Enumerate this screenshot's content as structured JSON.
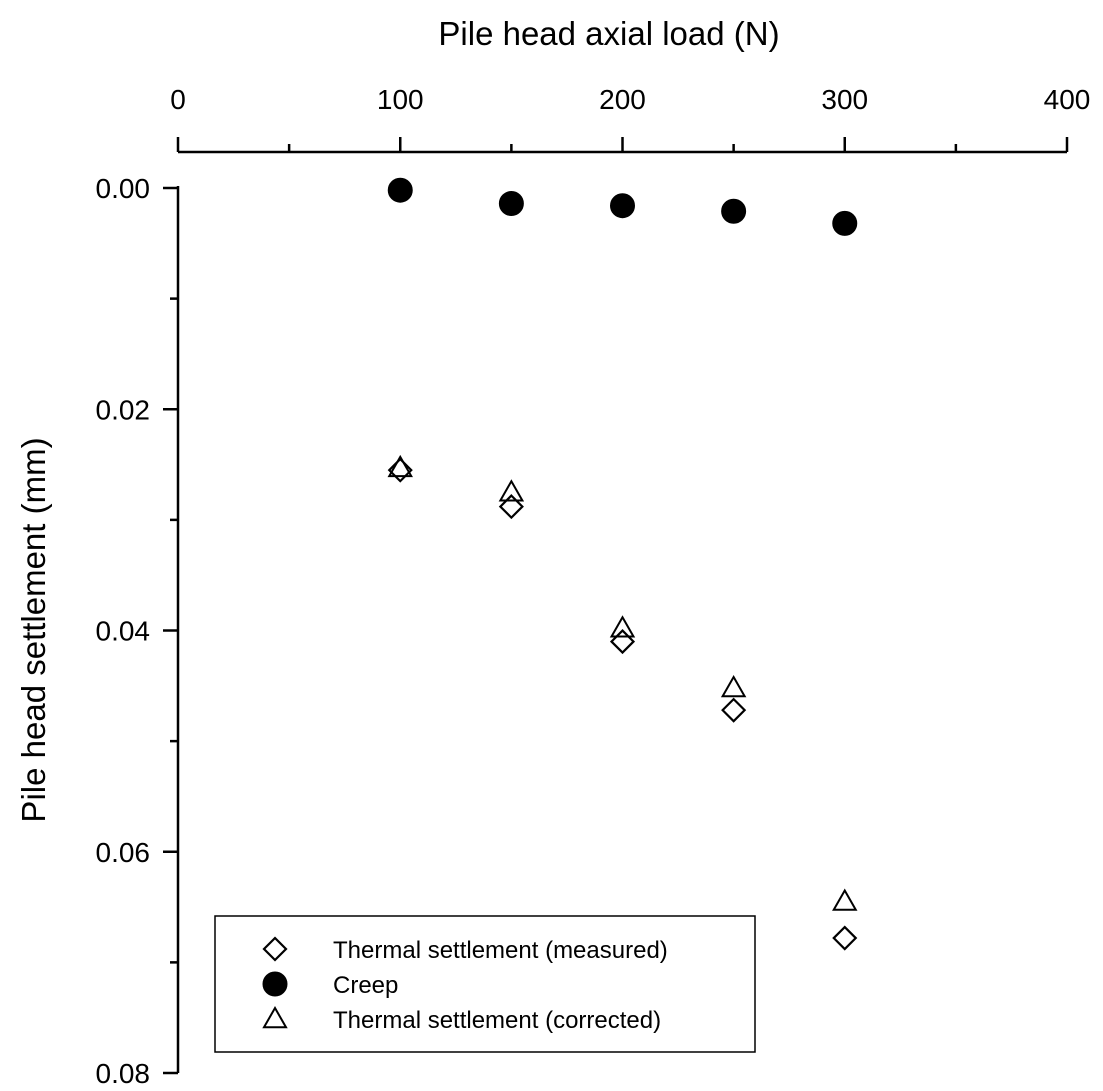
{
  "chart_data": {
    "type": "scatter",
    "xlabel": "Pile head axial load (N)",
    "ylabel": "Pile head settlement (mm)",
    "x_axis_position": "top",
    "y_axis_inverted": true,
    "xlim": [
      0,
      400
    ],
    "ylim": [
      0,
      0.08
    ],
    "x_ticks": [
      0,
      100,
      200,
      300,
      400
    ],
    "x_tick_labels": [
      "0",
      "100",
      "200",
      "300",
      "400"
    ],
    "x_minor_ticks": [
      50,
      150,
      250,
      350
    ],
    "y_ticks": [
      0,
      0.02,
      0.04,
      0.06,
      0.08
    ],
    "y_tick_labels": [
      "0.00",
      "0.02",
      "0.04",
      "0.06",
      "0.08"
    ],
    "y_minor_ticks": [
      0.01,
      0.03,
      0.05,
      0.07
    ],
    "grid": false,
    "legend_position": "bottom-left",
    "series": [
      {
        "name": "Thermal settlement (measured)",
        "marker": "diamond-open",
        "x": [
          100,
          150,
          200,
          250,
          300
        ],
        "y": [
          0.0255,
          0.0288,
          0.041,
          0.0472,
          0.0678
        ]
      },
      {
        "name": "Creep",
        "marker": "circle-filled",
        "x": [
          100,
          150,
          200,
          250,
          300
        ],
        "y": [
          0.0002,
          0.0014,
          0.0016,
          0.0021,
          0.0032
        ]
      },
      {
        "name": "Thermal settlement (corrected)",
        "marker": "triangle-open",
        "x": [
          100,
          150,
          200,
          250,
          300
        ],
        "y": [
          0.0253,
          0.0275,
          0.0398,
          0.0452,
          0.0645
        ]
      }
    ]
  }
}
